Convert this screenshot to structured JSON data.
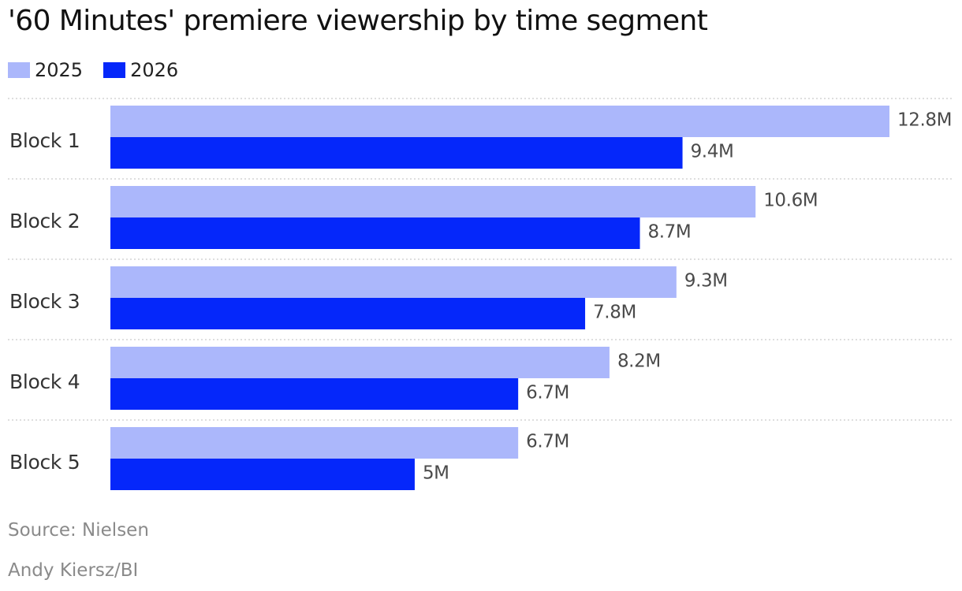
{
  "title": "'60 Minutes' premiere viewership by time segment",
  "legend": [
    {
      "label": "2025",
      "color": "#abb7fb"
    },
    {
      "label": "2026",
      "color": "#0527fa"
    }
  ],
  "footer": {
    "source": "Source: Nielsen",
    "credit": "Andy Kiersz/BI"
  },
  "chart_data": {
    "type": "bar",
    "orientation": "horizontal",
    "categories": [
      "Block 1",
      "Block 2",
      "Block 3",
      "Block 4",
      "Block 5"
    ],
    "series": [
      {
        "name": "2025",
        "color": "#abb7fb",
        "values": [
          12.8,
          10.6,
          9.3,
          8.2,
          6.7
        ],
        "labels": [
          "12.8M",
          "10.6M",
          "9.3M",
          "8.2M",
          "6.7M"
        ]
      },
      {
        "name": "2026",
        "color": "#0527fa",
        "values": [
          9.4,
          8.7,
          7.8,
          6.7,
          5
        ],
        "labels": [
          "9.4M",
          "8.7M",
          "7.8M",
          "6.7M",
          "5M"
        ]
      }
    ],
    "unit": "M",
    "xlim": [
      0,
      12.8
    ],
    "grid": false,
    "separators": "dotted",
    "legend_position": "top-left",
    "data_labels": true
  }
}
